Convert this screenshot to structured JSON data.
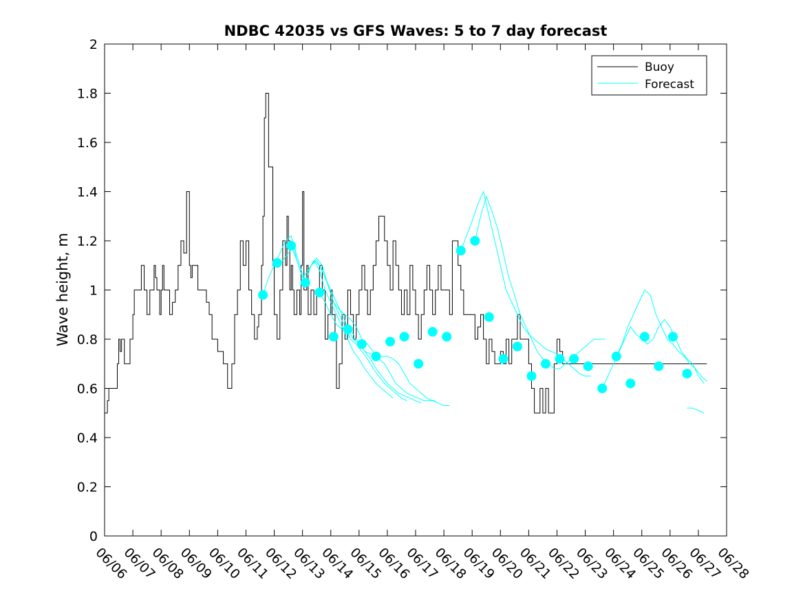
{
  "chart_data": {
    "type": "line",
    "title": "NDBC 42035 vs GFS Waves: 5 to 7 day forecast",
    "xlabel": "",
    "ylabel": "Wave height, m",
    "xlim": [
      "06/06",
      "06/28"
    ],
    "ylim": [
      0,
      2
    ],
    "x_ticks": [
      "06/06",
      "06/07",
      "06/08",
      "06/09",
      "06/10",
      "06/11",
      "06/12",
      "06/13",
      "06/14",
      "06/15",
      "06/16",
      "06/17",
      "06/18",
      "06/19",
      "06/20",
      "06/21",
      "06/22",
      "06/23",
      "06/24",
      "06/25",
      "06/26",
      "06/27",
      "06/28"
    ],
    "y_ticks": [
      "0",
      "0.2",
      "0.4",
      "0.6",
      "0.8",
      "1",
      "1.2",
      "1.4",
      "1.6",
      "1.8",
      "2"
    ],
    "grid": false,
    "legend": {
      "position": "top-right",
      "entries": [
        "Buoy",
        "Forecast"
      ]
    },
    "colors": {
      "buoy": "#000000",
      "forecast": "#00ffff"
    },
    "series": [
      {
        "name": "Buoy",
        "x_days_from_0606": [
          0.0,
          0.1,
          0.15,
          0.2,
          0.45,
          0.5,
          0.55,
          0.6,
          0.7,
          0.8,
          0.9,
          1.0,
          1.05,
          1.1,
          1.3,
          1.4,
          1.5,
          1.6,
          1.75,
          1.8,
          1.85,
          1.95,
          2.0,
          2.05,
          2.1,
          2.3,
          2.4,
          2.5,
          2.6,
          2.7,
          2.8,
          2.9,
          3.0,
          3.05,
          3.1,
          3.3,
          3.45,
          3.55,
          3.6,
          3.7,
          3.8,
          3.9,
          4.0,
          4.2,
          4.35,
          4.5,
          4.6,
          4.7,
          4.8,
          4.9,
          5.0,
          5.1,
          5.2,
          5.3,
          5.4,
          5.45,
          5.55,
          5.6,
          5.65,
          5.7,
          5.8,
          5.95,
          6.0,
          6.1,
          6.2,
          6.3,
          6.4,
          6.45,
          6.5,
          6.55,
          6.6,
          6.65,
          6.7,
          6.8,
          6.9,
          6.95,
          7.0,
          7.05,
          7.15,
          7.2,
          7.3,
          7.4,
          7.5,
          7.6,
          7.7,
          7.8,
          7.9,
          8.0,
          8.05,
          8.15,
          8.2,
          8.3,
          8.4,
          8.5,
          8.6,
          8.7,
          8.8,
          8.9,
          9.0,
          9.1,
          9.2,
          9.3,
          9.4,
          9.5,
          9.6,
          9.7,
          9.8,
          9.9,
          10.0,
          10.1,
          10.2,
          10.3,
          10.4,
          10.5,
          10.6,
          10.7,
          10.8,
          10.9,
          11.0,
          11.1,
          11.2,
          11.3,
          11.4,
          11.5,
          11.6,
          11.7,
          11.8,
          11.9,
          12.0,
          12.1,
          12.2,
          12.3,
          12.5,
          12.6,
          12.7,
          12.8,
          12.9,
          13.0,
          13.1,
          13.2,
          13.3,
          13.4,
          13.5,
          13.6,
          13.7,
          13.8,
          13.9,
          14.0,
          14.1,
          14.2,
          14.3,
          14.4,
          14.5,
          14.6,
          14.7,
          14.8,
          14.9,
          15.0,
          15.1,
          15.2,
          15.3,
          15.4,
          15.5,
          15.6,
          15.7,
          15.8,
          15.9,
          16.0,
          16.1,
          16.2,
          16.3,
          16.4,
          16.5,
          16.6,
          16.7,
          16.8,
          16.9,
          17.0,
          17.1,
          17.2,
          17.3,
          17.4,
          17.5,
          17.6,
          17.7,
          17.8,
          17.9,
          18.0,
          18.1,
          18.2,
          18.3,
          18.4,
          18.5,
          18.6,
          18.7,
          18.8,
          18.9,
          19.0,
          19.1,
          19.2,
          19.3,
          19.4,
          19.5,
          19.6,
          19.7,
          19.8,
          19.9,
          20.0,
          20.1,
          20.2,
          20.3,
          20.4,
          20.5,
          20.6,
          20.7,
          20.8,
          20.9,
          21.0,
          21.1,
          21.2,
          21.3
        ],
        "values": [
          0.5,
          0.55,
          0.6,
          0.6,
          0.7,
          0.8,
          0.75,
          0.8,
          0.7,
          0.7,
          0.8,
          0.9,
          1.0,
          1.0,
          1.1,
          1.0,
          0.9,
          1.0,
          1.1,
          1.05,
          1.0,
          0.9,
          1.0,
          1.1,
          1.0,
          0.9,
          0.95,
          1.0,
          1.1,
          1.2,
          1.15,
          1.4,
          1.1,
          1.05,
          1.1,
          1.0,
          1.0,
          1.0,
          0.95,
          0.9,
          0.8,
          0.8,
          0.75,
          0.7,
          0.6,
          0.7,
          0.9,
          1.0,
          1.2,
          1.1,
          1.2,
          1.0,
          0.9,
          0.8,
          0.85,
          0.9,
          1.1,
          1.3,
          1.7,
          1.8,
          1.5,
          1.1,
          0.9,
          0.8,
          1.0,
          1.2,
          1.1,
          1.3,
          1.2,
          1.0,
          1.1,
          1.0,
          0.9,
          1.0,
          0.9,
          1.1,
          1.4,
          1.0,
          1.1,
          0.9,
          1.0,
          0.9,
          1.0,
          1.1,
          1.0,
          0.8,
          0.9,
          1.0,
          0.9,
          0.8,
          0.6,
          0.7,
          0.9,
          0.8,
          1.0,
          0.9,
          0.8,
          0.9,
          1.0,
          1.1,
          1.0,
          0.9,
          1.0,
          1.1,
          1.2,
          1.3,
          1.3,
          1.2,
          1.1,
          1.0,
          1.2,
          1.1,
          1.0,
          0.9,
          1.0,
          0.9,
          1.1,
          1.0,
          0.9,
          0.8,
          0.9,
          1.0,
          1.1,
          1.0,
          0.9,
          1.0,
          1.1,
          1.0,
          1.0,
          1.0,
          0.9,
          1.2,
          1.1,
          1.0,
          0.9,
          0.9,
          0.9,
          0.9,
          0.8,
          0.85,
          0.9,
          0.8,
          0.7,
          0.8,
          0.75,
          0.7,
          0.7,
          0.75,
          0.7,
          0.8,
          0.7,
          0.8,
          0.8,
          0.9,
          0.8,
          0.8,
          0.8,
          0.7,
          0.6,
          0.5,
          0.5,
          0.6,
          0.5,
          0.6,
          0.5,
          0.5,
          0.7,
          0.8,
          0.75,
          0.7,
          0.7,
          0.7,
          0.7,
          0.7,
          0.7,
          0.7,
          0.7,
          0.7,
          0.7,
          0.7,
          0.7,
          0.7,
          0.7,
          0.7,
          0.7,
          0.7,
          0.7,
          0.7,
          0.7,
          0.7,
          0.7,
          0.7,
          0.7,
          0.7,
          0.7,
          0.7,
          0.7,
          0.7,
          0.7,
          0.7,
          0.7,
          0.7,
          0.7,
          0.7,
          0.7,
          0.7,
          0.7,
          0.7,
          0.7,
          0.7,
          0.7,
          0.7,
          0.7,
          0.7,
          0.7,
          0.7,
          0.7,
          0.7,
          0.7,
          0.7,
          0.7,
          0.7
        ]
      },
      {
        "name": "Forecast",
        "markers_x_days_from_0606": [
          5.6,
          6.1,
          6.6,
          7.1,
          7.6,
          8.1,
          8.6,
          9.1,
          9.6,
          10.1,
          10.6,
          11.1,
          11.6,
          12.1,
          12.6,
          13.1,
          13.6,
          14.1,
          14.6,
          15.1,
          15.6,
          16.1,
          16.6,
          17.1,
          17.6,
          18.1,
          18.6,
          19.1,
          19.6,
          20.1,
          20.6
        ],
        "markers_values": [
          0.98,
          1.11,
          1.18,
          1.03,
          0.99,
          0.81,
          0.84,
          0.78,
          0.73,
          0.79,
          0.81,
          0.7,
          0.83,
          0.81,
          1.16,
          1.2,
          0.89,
          0.72,
          0.77,
          0.65,
          0.7,
          0.72,
          0.72,
          0.69,
          0.6,
          0.73,
          0.62,
          0.81,
          0.69,
          0.81,
          0.66
        ],
        "forecast_runs": [
          {
            "x": [
              5.6,
              5.8,
              6.0,
              6.2,
              6.4,
              6.6,
              6.8,
              7.0,
              7.2,
              7.4,
              7.6,
              7.8,
              8.0,
              8.2,
              8.4,
              8.6,
              8.8,
              9.0,
              9.2,
              9.4,
              9.6,
              9.8,
              10.0,
              10.2
            ],
            "values": [
              0.98,
              1.05,
              1.1,
              1.15,
              1.2,
              1.22,
              1.12,
              1.05,
              1.08,
              1.12,
              1.08,
              1.0,
              0.95,
              0.9,
              0.85,
              0.8,
              0.75,
              0.72,
              0.68,
              0.65,
              0.62,
              0.6,
              0.58,
              0.56
            ]
          },
          {
            "x": [
              6.1,
              6.3,
              6.5,
              6.7,
              6.9,
              7.1,
              7.3,
              7.5,
              7.7,
              7.9,
              8.1,
              8.3,
              8.5,
              8.7,
              8.9,
              9.1,
              9.3,
              9.5,
              9.7,
              9.9,
              10.1,
              10.3,
              10.5,
              10.7
            ],
            "values": [
              1.11,
              1.12,
              1.15,
              1.18,
              1.1,
              1.03,
              1.1,
              1.13,
              1.1,
              1.02,
              0.95,
              0.9,
              0.85,
              0.8,
              0.78,
              0.75,
              0.72,
              0.68,
              0.65,
              0.62,
              0.6,
              0.58,
              0.56,
              0.55
            ]
          },
          {
            "x": [
              6.6,
              6.8,
              7.0,
              7.2,
              7.4,
              7.6,
              7.8,
              8.0,
              8.2,
              8.4,
              8.6,
              8.8,
              9.0,
              9.2,
              9.4,
              9.6,
              9.8,
              10.0,
              10.2,
              10.4,
              10.6,
              10.8,
              11.0,
              11.2
            ],
            "values": [
              1.18,
              1.12,
              1.05,
              1.08,
              1.12,
              1.1,
              1.05,
              1.0,
              0.95,
              0.9,
              0.85,
              0.82,
              0.78,
              0.75,
              0.72,
              0.68,
              0.65,
              0.62,
              0.6,
              0.58,
              0.57,
              0.56,
              0.55,
              0.54
            ]
          },
          {
            "x": [
              7.1,
              7.3,
              7.5,
              7.7,
              7.9,
              8.1,
              8.3,
              8.5,
              8.7,
              8.9,
              9.1,
              9.3,
              9.5,
              9.7,
              9.9,
              10.1,
              10.3,
              10.5,
              10.7,
              10.9,
              11.1,
              11.3,
              11.5,
              11.7
            ],
            "values": [
              1.03,
              1.1,
              1.12,
              1.08,
              1.02,
              0.95,
              0.92,
              0.9,
              0.88,
              0.85,
              0.8,
              0.78,
              0.75,
              0.72,
              0.7,
              0.66,
              0.62,
              0.6,
              0.58,
              0.57,
              0.56,
              0.55,
              0.55,
              0.55
            ]
          },
          {
            "x": [
              7.6,
              7.8,
              8.0,
              8.2,
              8.4,
              8.6,
              8.8,
              9.0,
              9.2,
              9.4,
              9.6,
              9.8,
              10.0,
              10.2,
              10.4,
              10.6,
              10.8,
              11.0,
              11.2,
              11.4,
              11.6,
              11.8,
              12.0,
              12.2
            ],
            "values": [
              0.99,
              0.95,
              0.9,
              0.86,
              0.84,
              0.84,
              0.8,
              0.78,
              0.75,
              0.74,
              0.74,
              0.73,
              0.73,
              0.72,
              0.7,
              0.66,
              0.62,
              0.6,
              0.58,
              0.56,
              0.55,
              0.54,
              0.53,
              0.53
            ]
          },
          {
            "x": [
              12.6,
              12.8,
              13.0,
              13.2,
              13.4,
              13.6,
              13.8,
              14.0,
              14.2,
              14.4,
              14.6,
              14.8,
              15.0,
              15.2,
              15.4,
              15.6,
              15.8,
              16.0,
              16.2,
              16.4,
              16.6,
              16.8,
              17.0,
              17.2
            ],
            "values": [
              1.16,
              1.22,
              1.28,
              1.35,
              1.4,
              1.3,
              1.2,
              1.1,
              1.0,
              0.95,
              0.9,
              0.85,
              0.82,
              0.8,
              0.78,
              0.76,
              0.75,
              0.74,
              0.72,
              0.7,
              0.68,
              0.66,
              0.65,
              0.65
            ]
          },
          {
            "x": [
              13.1,
              13.3,
              13.5,
              13.7,
              13.9,
              14.1,
              14.3,
              14.5,
              14.7,
              14.9,
              15.1,
              15.3,
              15.5,
              15.7,
              15.9,
              16.1,
              16.3,
              16.5,
              16.7,
              16.9,
              17.1,
              17.3,
              17.5,
              17.7
            ],
            "values": [
              1.2,
              1.3,
              1.38,
              1.32,
              1.25,
              1.15,
              1.05,
              0.98,
              0.9,
              0.85,
              0.8,
              0.75,
              0.72,
              0.7,
              0.68,
              0.68,
              0.7,
              0.72,
              0.74,
              0.76,
              0.78,
              0.8,
              0.8,
              0.8
            ]
          },
          {
            "x": [
              17.6,
              17.8,
              18.0,
              18.2,
              18.4,
              18.6,
              18.8,
              19.0,
              19.2,
              19.4,
              19.6,
              19.8,
              20.0,
              20.2,
              20.4,
              20.6,
              20.8,
              21.0,
              21.2
            ],
            "values": [
              0.6,
              0.65,
              0.7,
              0.75,
              0.8,
              0.85,
              0.82,
              0.8,
              0.78,
              0.8,
              0.85,
              0.88,
              0.85,
              0.8,
              0.75,
              0.72,
              0.7,
              0.65,
              0.62
            ]
          },
          {
            "x": [
              18.1,
              18.3,
              18.5,
              18.7,
              18.9,
              19.1,
              19.3,
              19.5,
              19.7,
              19.9,
              20.1,
              20.3,
              20.5,
              20.7,
              20.9,
              21.1,
              21.3
            ],
            "values": [
              0.73,
              0.78,
              0.85,
              0.9,
              0.95,
              1.0,
              0.98,
              0.9,
              0.85,
              0.8,
              0.78,
              0.75,
              0.73,
              0.7,
              0.68,
              0.65,
              0.63
            ]
          },
          {
            "x": [
              20.6,
              20.8,
              21.0,
              21.2
            ],
            "values": [
              0.52,
              0.52,
              0.51,
              0.5
            ]
          }
        ]
      }
    ]
  }
}
